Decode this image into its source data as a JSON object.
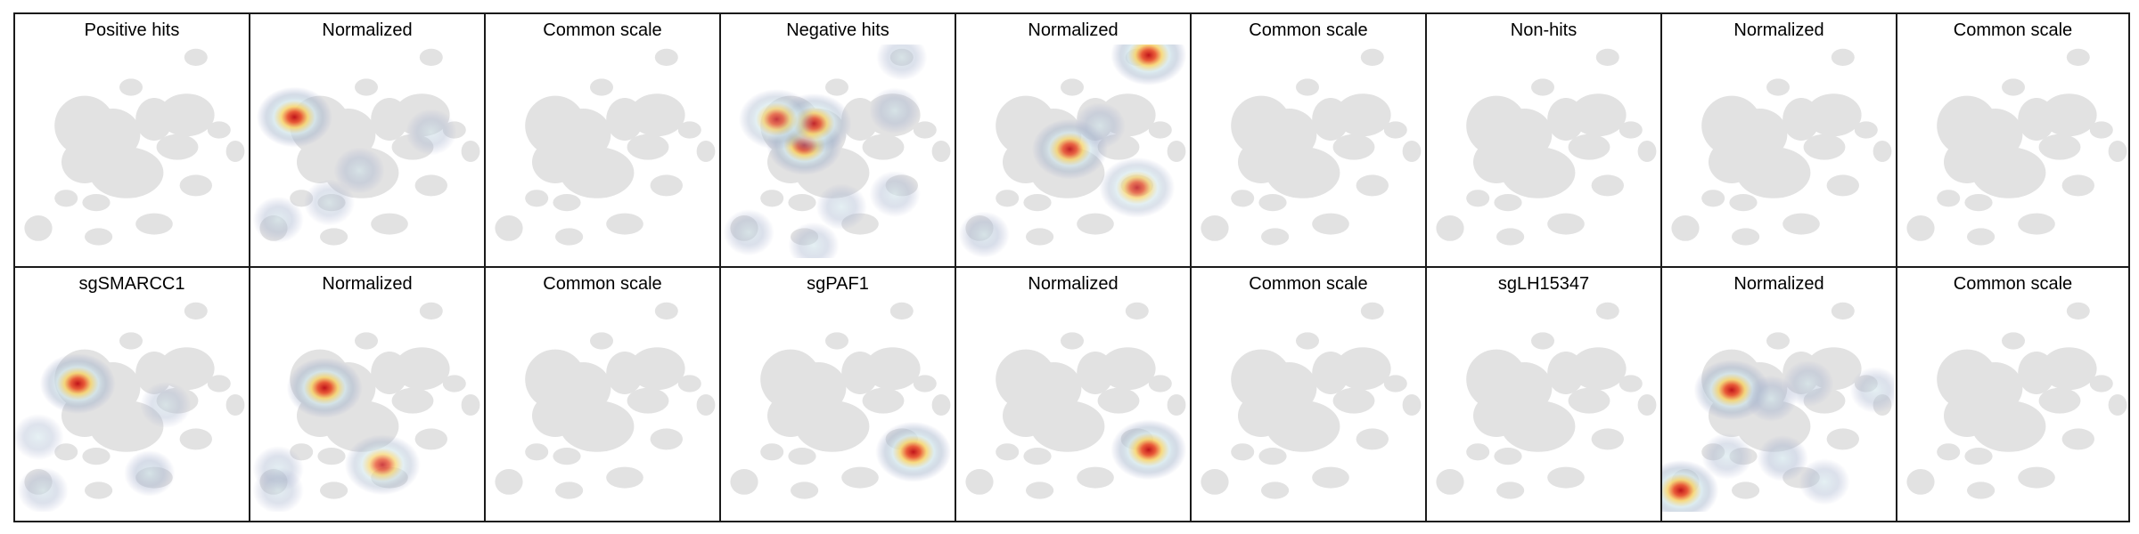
{
  "figure": {
    "rows": [
      {
        "panels": [
          {
            "title": "Positive hits",
            "heat": []
          },
          {
            "title": "Normalized",
            "heat": [
              [
                0.19,
                0.34,
                1.0
              ],
              [
                0.12,
                0.82,
                0.35
              ],
              [
                0.47,
                0.59,
                0.35
              ],
              [
                0.78,
                0.41,
                0.25
              ],
              [
                0.34,
                0.74,
                0.2
              ]
            ]
          },
          {
            "title": "Common scale",
            "heat": []
          },
          {
            "title": "Negative hits",
            "heat": [
              [
                0.36,
                0.47,
                1.0
              ],
              [
                0.4,
                0.37,
                0.8
              ],
              [
                0.24,
                0.35,
                0.6
              ],
              [
                0.75,
                0.31,
                0.4
              ],
              [
                0.12,
                0.88,
                0.35
              ],
              [
                0.4,
                0.94,
                0.3
              ],
              [
                0.75,
                0.7,
                0.3
              ],
              [
                0.78,
                0.06,
                0.3
              ],
              [
                0.52,
                0.76,
                0.3
              ]
            ]
          },
          {
            "title": "Normalized",
            "heat": [
              [
                0.83,
                0.05,
                1.0
              ],
              [
                0.49,
                0.49,
                0.85
              ],
              [
                0.78,
                0.67,
                0.6
              ],
              [
                0.12,
                0.89,
                0.45
              ],
              [
                0.62,
                0.38,
                0.4
              ]
            ]
          },
          {
            "title": "Common scale",
            "heat": []
          },
          {
            "title": "Non-hits",
            "heat": []
          },
          {
            "title": "Normalized",
            "heat": []
          },
          {
            "title": "Common scale",
            "heat": []
          }
        ]
      },
      {
        "panels": [
          {
            "title": "sgSMARCC1",
            "heat": [
              [
                0.27,
                0.4,
                1.0
              ],
              [
                0.58,
                0.82,
                0.55
              ],
              [
                0.12,
                0.9,
                0.3
              ],
              [
                0.65,
                0.5,
                0.2
              ],
              [
                0.1,
                0.65,
                0.2
              ]
            ]
          },
          {
            "title": "Normalized",
            "heat": [
              [
                0.32,
                0.42,
                1.0
              ],
              [
                0.57,
                0.78,
                0.6
              ],
              [
                0.12,
                0.8,
                0.3
              ],
              [
                0.12,
                0.9,
                0.25
              ]
            ]
          },
          {
            "title": "Common scale",
            "heat": []
          },
          {
            "title": "sgPAF1",
            "heat": [
              [
                0.83,
                0.72,
                1.0
              ]
            ]
          },
          {
            "title": "Normalized",
            "heat": [
              [
                0.83,
                0.71,
                1.0
              ]
            ]
          },
          {
            "title": "Common scale",
            "heat": []
          },
          {
            "title": "sgLH15347",
            "heat": []
          },
          {
            "title": "Normalized",
            "heat": [
              [
                0.3,
                0.43,
                1.0
              ],
              [
                0.47,
                0.47,
                0.55
              ],
              [
                0.63,
                0.4,
                0.35
              ],
              [
                0.92,
                0.43,
                0.3
              ],
              [
                0.08,
                0.9,
                1.0
              ],
              [
                0.28,
                0.74,
                0.3
              ],
              [
                0.52,
                0.75,
                0.5
              ],
              [
                0.7,
                0.86,
                0.3
              ]
            ]
          },
          {
            "title": "Common scale",
            "heat": []
          }
        ]
      }
    ]
  }
}
